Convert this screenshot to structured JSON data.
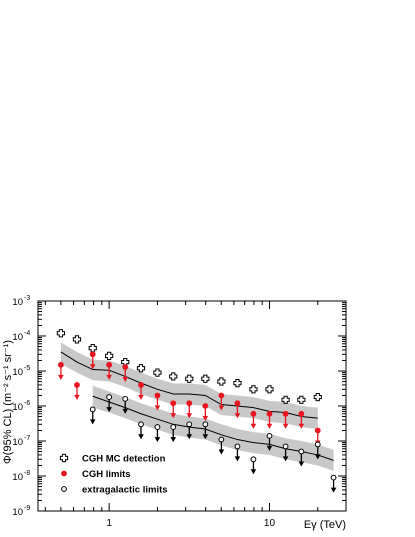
{
  "chart_data": {
    "type": "scatter",
    "title": "",
    "xlabel": "Eγ (TeV)",
    "ylabel": "Φ(95% CL) (m⁻² s⁻¹ sr⁻¹)",
    "xscale": "log",
    "yscale": "log",
    "xlim": [
      0.36,
      30
    ],
    "ylim": [
      1e-09,
      0.001
    ],
    "x_ticks": [
      {
        "value": 1,
        "label": "1"
      },
      {
        "value": 10,
        "label": "10"
      }
    ],
    "y_ticks": [
      {
        "value": 1e-09,
        "base": "10",
        "exp": "-9"
      },
      {
        "value": 1e-08,
        "base": "10",
        "exp": "-8"
      },
      {
        "value": 1e-07,
        "base": "10",
        "exp": "-7"
      },
      {
        "value": 1e-06,
        "base": "10",
        "exp": "-6"
      },
      {
        "value": 1e-05,
        "base": "10",
        "exp": "-5"
      },
      {
        "value": 0.0001,
        "base": "10",
        "exp": "-4"
      },
      {
        "value": 0.001,
        "base": "10",
        "exp": "-3"
      }
    ],
    "legend_position": "bottom-left",
    "series": [
      {
        "name": "CGH MC detection",
        "marker": "open-cross",
        "color": "#000000",
        "x": [
          0.5,
          0.63,
          0.79,
          1.0,
          1.26,
          1.58,
          2.0,
          2.51,
          3.16,
          3.98,
          5.01,
          6.31,
          7.94,
          10.0,
          12.6,
          15.8,
          20.0
        ],
        "y": [
          0.00012,
          8e-05,
          4.5e-05,
          2.7e-05,
          1.8e-05,
          1.2e-05,
          9e-06,
          7e-06,
          6e-06,
          6e-06,
          5e-06,
          4.5e-06,
          3e-06,
          3e-06,
          1.5e-06,
          1.5e-06,
          1.8e-06
        ]
      },
      {
        "name": "CGH limits",
        "marker": "filled-circle-arrow",
        "color": "#e8141e",
        "x": [
          0.5,
          0.63,
          0.79,
          1.0,
          1.26,
          1.58,
          2.0,
          2.51,
          3.16,
          3.98,
          5.01,
          6.31,
          7.94,
          10.0,
          12.6,
          15.8,
          20.0
        ],
        "y": [
          1.5e-05,
          4e-06,
          3e-05,
          1.5e-05,
          1.3e-05,
          4e-06,
          2e-06,
          1.2e-06,
          1.2e-06,
          1e-06,
          2e-06,
          1.2e-06,
          6e-07,
          6e-07,
          6e-07,
          6e-07,
          2e-07
        ]
      },
      {
        "name": "extragalactic limits",
        "marker": "open-circle-arrow",
        "color": "#000000",
        "x": [
          0.79,
          1.0,
          1.26,
          1.58,
          2.0,
          2.51,
          3.16,
          3.98,
          5.01,
          6.31,
          7.94,
          10.0,
          12.6,
          15.8,
          20.0,
          25.1
        ],
        "y": [
          8e-07,
          1.8e-06,
          1.6e-06,
          3e-07,
          2.5e-07,
          2.5e-07,
          3e-07,
          3e-07,
          1.1e-07,
          7e-08,
          3e-08,
          1.4e-07,
          7e-08,
          5e-08,
          8e-08,
          9e-09
        ]
      }
    ],
    "bands": [
      {
        "color": "#c8c8c8",
        "line_color": "#000000",
        "x": [
          0.5,
          0.63,
          0.79,
          1.0,
          1.26,
          1.58,
          2.0,
          2.51,
          3.16,
          3.98,
          5.01,
          6.31,
          7.94,
          10.0,
          12.6,
          15.8,
          20.0
        ],
        "center": [
          3.5e-05,
          1.8e-05,
          1.1e-05,
          1.05e-05,
          7e-06,
          4.5e-06,
          3e-06,
          2.2e-06,
          2.2e-06,
          2e-06,
          1.1e-06,
          1e-06,
          9e-07,
          7e-07,
          6.5e-07,
          5e-07,
          4.5e-07
        ],
        "lower": [
          1.6e-05,
          9e-06,
          5.5e-06,
          5e-06,
          3.5e-06,
          2.2e-06,
          1.5e-06,
          1.1e-06,
          1.1e-06,
          1e-06,
          5.5e-07,
          5e-07,
          4.5e-07,
          3.5e-07,
          3.2e-07,
          2.5e-07,
          2.2e-07
        ],
        "upper": [
          6.5e-05,
          3.5e-05,
          2.1e-05,
          2e-05,
          1.4e-05,
          9e-06,
          6e-06,
          4.4e-06,
          4.4e-06,
          4e-06,
          2.2e-06,
          2e-06,
          1.8e-06,
          1.4e-06,
          1.3e-06,
          1e-06,
          9e-07
        ]
      },
      {
        "color": "#c8c8c8",
        "line_color": "#000000",
        "x": [
          0.79,
          1.0,
          1.26,
          1.58,
          2.0,
          2.51,
          3.16,
          3.98,
          5.01,
          6.31,
          7.94,
          10.0,
          12.6,
          15.8,
          20.0,
          25.1
        ],
        "center": [
          1.9e-06,
          1.3e-06,
          9e-07,
          6e-07,
          4.2e-07,
          3e-07,
          2.5e-07,
          2.2e-07,
          1.5e-07,
          1.1e-07,
          9e-08,
          8e-08,
          6e-08,
          5e-08,
          4e-08,
          2.8e-08
        ],
        "lower": [
          9e-07,
          6.5e-07,
          4.5e-07,
          3e-07,
          2.1e-07,
          1.5e-07,
          1.25e-07,
          1.1e-07,
          7.5e-08,
          5.5e-08,
          4.5e-08,
          4e-08,
          3e-08,
          2.5e-08,
          2e-08,
          1.4e-08
        ],
        "upper": [
          3.8e-06,
          2.6e-06,
          1.8e-06,
          1.2e-06,
          8.5e-07,
          6e-07,
          5e-07,
          4.4e-07,
          3e-07,
          2.2e-07,
          1.8e-07,
          1.6e-07,
          1.2e-07,
          1e-07,
          8e-08,
          5.6e-08
        ]
      }
    ],
    "legend": [
      {
        "label": "CGH MC detection",
        "marker": "open-cross"
      },
      {
        "label": "CGH limits",
        "marker": "filled-circle"
      },
      {
        "label": "extragalactic limits",
        "marker": "open-circle"
      }
    ]
  }
}
